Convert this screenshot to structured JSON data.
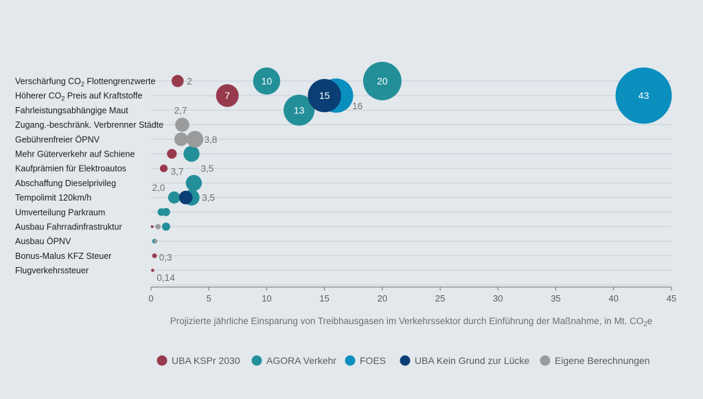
{
  "colors": {
    "background": "#e3e8ec",
    "grid": "#c7ced3",
    "UBA KSPr 2030": "#983a4e",
    "AGORA Verkehr": "#238f99",
    "FOES": "#0a8fbf",
    "UBA Kein Grund zur Lücke": "#0a3e75",
    "Eigene Berechnungen": "#9a9b9c"
  },
  "chart_data": {
    "type": "scatter",
    "subtype": "bubble",
    "xlabel": "Projizierte jährliche Einsparung von Treibhausgasen im Verkehrssektor durch Einführung der Maßnahme, in Mt. CO₂e",
    "xlim": [
      0,
      45
    ],
    "xticks": [
      0,
      5,
      10,
      15,
      20,
      25,
      30,
      35,
      40,
      45
    ],
    "grid": "horizontal",
    "legend_position": "bottom",
    "categories": [
      "Verschärfung CO₂ Flottengrenzwerte",
      "Höherer CO₂ Preis auf Kraftstoffe",
      "Fahrleistungsabhängige Maut",
      "Zugang.-beschränk. Verbrenner Städte",
      "Gebührenfreier ÖPNV",
      "Mehr Güterverkehr auf Schiene",
      "Kaufprämien für Elektroautos",
      "Abschaffung Dieselprivileg",
      "Tempolimit 120km/h",
      "Umverteilung Parkraum",
      "Ausbau Fahrradinfrastruktur",
      "Ausbau ÖPNV",
      "Bonus-Malus KFZ Steuer",
      "Flugverkehrssteuer"
    ],
    "series": [
      {
        "name": "UBA KSPr 2030",
        "points": [
          {
            "category": "Verschärfung CO₂ Flottengrenzwerte",
            "x": 2.3,
            "size": 2
          },
          {
            "category": "Höherer CO₂ Preis auf Kraftstoffe",
            "x": 6.6,
            "size": 7,
            "label": "7"
          },
          {
            "category": "Mehr Güterverkehr auf Schiene",
            "x": 1.8,
            "size": 1.3
          },
          {
            "category": "Kaufprämien für Elektroautos",
            "x": 1.1,
            "size": 0.8
          },
          {
            "category": "Ausbau Fahrradinfrastruktur",
            "x": 0.1,
            "size": 0.05
          },
          {
            "category": "Bonus-Malus KFZ Steuer",
            "x": 0.3,
            "size": 0.3
          },
          {
            "category": "Flugverkehrssteuer",
            "x": 0.14,
            "size": 0.14
          }
        ]
      },
      {
        "name": "AGORA Verkehr",
        "points": [
          {
            "category": "Verschärfung CO₂ Flottengrenzwerte",
            "x": 10,
            "size": 10,
            "label": "10"
          },
          {
            "category": "Verschärfung CO₂ Flottengrenzwerte",
            "x": 20,
            "size": 20,
            "label": "20"
          },
          {
            "category": "Fahrleistungsabhängige Maut",
            "x": 12.8,
            "size": 13,
            "label": "13"
          },
          {
            "category": "Mehr Güterverkehr auf Schiene",
            "x": 3.5,
            "size": 3.5
          },
          {
            "category": "Abschaffung Dieselprivileg",
            "x": 3.7,
            "size": 3.5
          },
          {
            "category": "Tempolimit 120km/h",
            "x": 2.0,
            "size": 2.0
          },
          {
            "category": "Tempolimit 120km/h",
            "x": 3.5,
            "size": 3.5
          },
          {
            "category": "Umverteilung Parkraum",
            "x": 0.9,
            "size": 0.8
          },
          {
            "category": "Umverteilung Parkraum",
            "x": 1.3,
            "size": 0.9
          },
          {
            "category": "Ausbau Fahrradinfrastruktur",
            "x": 1.3,
            "size": 0.9
          },
          {
            "category": "Ausbau ÖPNV",
            "x": 0.3,
            "size": 0.3
          }
        ]
      },
      {
        "name": "FOES",
        "points": [
          {
            "category": "Höherer CO₂ Preis auf Kraftstoffe",
            "x": 16,
            "size": 16
          },
          {
            "category": "Höherer CO₂ Preis auf Kraftstoffe",
            "x": 42.6,
            "size": 43,
            "label": "43"
          }
        ]
      },
      {
        "name": "UBA Kein Grund zur Lücke",
        "points": [
          {
            "category": "Höherer CO₂ Preis auf Kraftstoffe",
            "x": 15,
            "size": 15,
            "label": "15"
          },
          {
            "category": "Tempolimit 120km/h",
            "x": 3.0,
            "size": 2.5
          }
        ]
      },
      {
        "name": "Eigene Berechnungen",
        "points": [
          {
            "category": "Zugang.-beschränk. Verbrenner Städte",
            "x": 2.7,
            "size": 2.7
          },
          {
            "category": "Gebührenfreier ÖPNV",
            "x": 2.6,
            "size": 2.5
          },
          {
            "category": "Gebührenfreier ÖPNV",
            "x": 3.8,
            "size": 3.8
          },
          {
            "category": "Ausbau Fahrradinfrastruktur",
            "x": 0.6,
            "size": 0.4
          },
          {
            "category": "Ausbau ÖPNV",
            "x": 0.4,
            "size": 0.2
          }
        ]
      }
    ],
    "value_labels": [
      {
        "text": "2",
        "category": "Verschärfung CO₂ Flottengrenzwerte",
        "x": 3.1
      },
      {
        "text": "16",
        "category": "Höherer CO₂ Preis auf Kraftstoffe",
        "x": 17.4,
        "dy": 0.7
      },
      {
        "text": "2,7",
        "category": "Fahrleistungsabhängige Maut",
        "x": 2.0
      },
      {
        "text": "3,8",
        "category": "Gebührenfreier ÖPNV",
        "x": 4.6
      },
      {
        "text": "3,7",
        "category": "Kaufprämien für Elektroautos",
        "x": 1.7,
        "dy": 0.2
      },
      {
        "text": "3,5",
        "category": "Kaufprämien für Elektroautos",
        "x": 4.3
      },
      {
        "text": "2,0",
        "category": "Abschaffung Dieselprivileg",
        "x": 0.1,
        "dy": 0.3
      },
      {
        "text": "3,5",
        "category": "Tempolimit 120km/h",
        "x": 4.4
      },
      {
        "text": "0,3",
        "category": "Bonus-Malus KFZ Steuer",
        "x": 0.7,
        "dy": 0.1
      },
      {
        "text": "0,14",
        "category": "Flugverkehrssteuer",
        "x": 0.5,
        "dy": 0.5
      }
    ]
  }
}
